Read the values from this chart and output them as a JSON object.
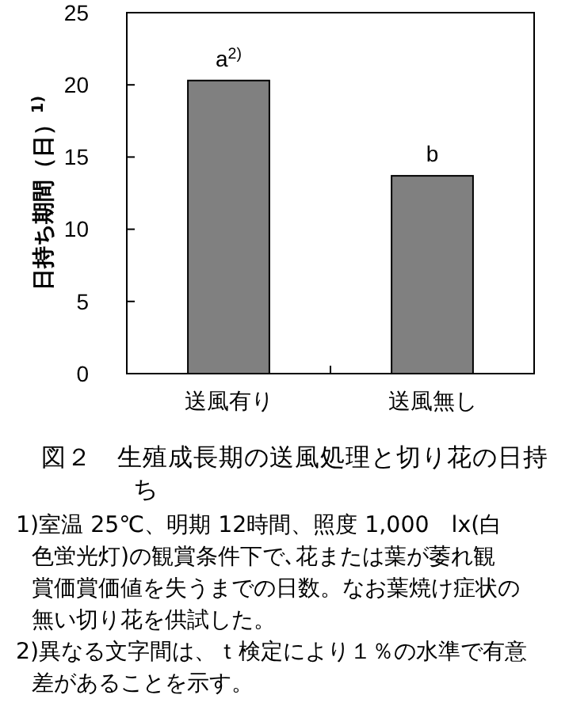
{
  "chart_data": {
    "type": "bar",
    "title": "図２　生殖成長期の送風処理と切り花の日持ち",
    "ylabel": "日持ち期間（日）$^{1)}$",
    "categories": [
      "送風有り",
      "送風無し"
    ],
    "values": [
      20.3,
      13.7
    ],
    "color": "#808080",
    "ylim": [
      0,
      25
    ],
    "yticks": [
      0,
      5,
      10,
      15,
      20,
      25
    ],
    "grid": false,
    "annotations": [
      {
        "text": "a$^{2)}$",
        "x": "送風有り",
        "y": 20.3
      },
      {
        "text": "b",
        "x": "送風無し",
        "y": 13.7
      },
      "1)室温 25℃、明期 12時間、照度 1,000　lx(白色蛍光灯)の観賞条件下で､花または葉が萎れ観賞価賞価値を失うまでの日数。なお葉焼け症状の無い切り花を供試した。",
      "2)異なる文字間は、ｔ検定により１％の水準で有意差があることを示す。"
    ]
  }
}
